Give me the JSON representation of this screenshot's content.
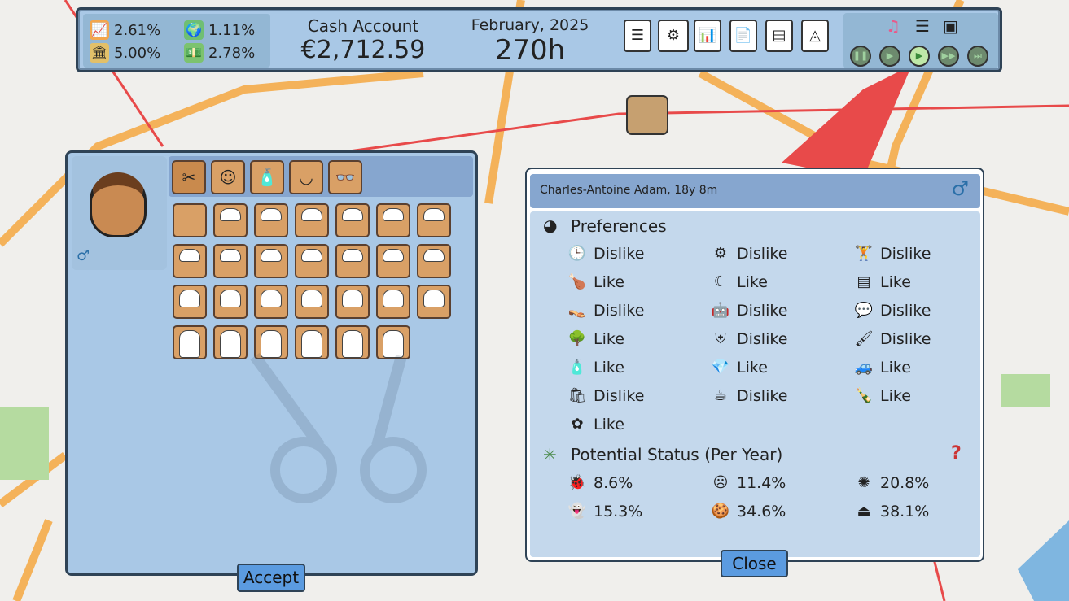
{
  "topbar": {
    "stats": [
      {
        "icon": "growth-chart-icon",
        "value": "2.61%"
      },
      {
        "icon": "global-market-icon",
        "value": "1.11%"
      },
      {
        "icon": "bank-icon",
        "value": "5.00%"
      },
      {
        "icon": "inflation-money-icon",
        "value": "2.78%"
      }
    ],
    "cash_label": "Cash Account",
    "cash_value": "€2,712.59",
    "date_label": "February, 2025",
    "hours": "270h",
    "toolbar_icons": [
      "phone-icon",
      "network-icon",
      "tablet-stocks-icon",
      "reports-icon",
      "ledger-icon",
      "logo-card-icon"
    ],
    "media_icons": [
      "music-icon",
      "list-icon",
      "image-frame-icon"
    ],
    "playback": [
      "pause-icon",
      "play-icon",
      "play-active-icon",
      "fast-forward-icon",
      "skip-icon"
    ]
  },
  "editor": {
    "tabs": [
      "hair-scissors-icon",
      "beard-icon",
      "hair-dye-icon",
      "eyebrow-icon",
      "glasses-icon"
    ],
    "gender_icon": "male-symbol-icon",
    "hair_rows": [
      7,
      7,
      7,
      6
    ],
    "accept_label": "Accept"
  },
  "profile": {
    "name": "Charles-Antoine Adam, 18y 8m",
    "gender_icon": "male-symbol-icon",
    "preferences_title": "Preferences",
    "preferences": [
      {
        "icon": "clock-icon",
        "value": "Dislike"
      },
      {
        "icon": "mind-gear-icon",
        "value": "Dislike"
      },
      {
        "icon": "dumbbell-icon",
        "value": "Dislike"
      },
      {
        "icon": "fried-chicken-icon",
        "value": "Like"
      },
      {
        "icon": "moon-sleep-icon",
        "value": "Like"
      },
      {
        "icon": "paper-stack-icon",
        "value": "Like"
      },
      {
        "icon": "slippers-icon",
        "value": "Dislike"
      },
      {
        "icon": "robot-icon",
        "value": "Dislike"
      },
      {
        "icon": "chat-bubble-icon",
        "value": "Dislike"
      },
      {
        "icon": "park-bench-icon",
        "value": "Like"
      },
      {
        "icon": "police-badge-icon",
        "value": "Dislike"
      },
      {
        "icon": "art-supplies-icon",
        "value": "Dislike"
      },
      {
        "icon": "mouthwash-icon",
        "value": "Like"
      },
      {
        "icon": "diamond-crown-icon",
        "value": "Like"
      },
      {
        "icon": "car-icon",
        "value": "Like"
      },
      {
        "icon": "shopping-bag-icon",
        "value": "Dislike"
      },
      {
        "icon": "coffee-bean-icon",
        "value": "Dislike"
      },
      {
        "icon": "liquor-bottles-icon",
        "value": "Like"
      },
      {
        "icon": "flower-icon",
        "value": "Like"
      }
    ],
    "status_title": "Potential Status (Per Year)",
    "help_icon": "question-mark-icon",
    "statuses": [
      {
        "icon": "bug-icon",
        "value": "8.6%"
      },
      {
        "icon": "head-pain-icon",
        "value": "11.4%"
      },
      {
        "icon": "brain-icon",
        "value": "20.8%"
      },
      {
        "icon": "ghost-icon",
        "value": "15.3%"
      },
      {
        "icon": "cookie-icon",
        "value": "34.6%"
      },
      {
        "icon": "tower-icon",
        "value": "38.1%"
      }
    ],
    "close_label": "Close"
  },
  "colors": {
    "panel": "#a9c8e6",
    "border": "#2f4356",
    "button": "#5b9be0",
    "hair_cell": "#d9a066"
  }
}
